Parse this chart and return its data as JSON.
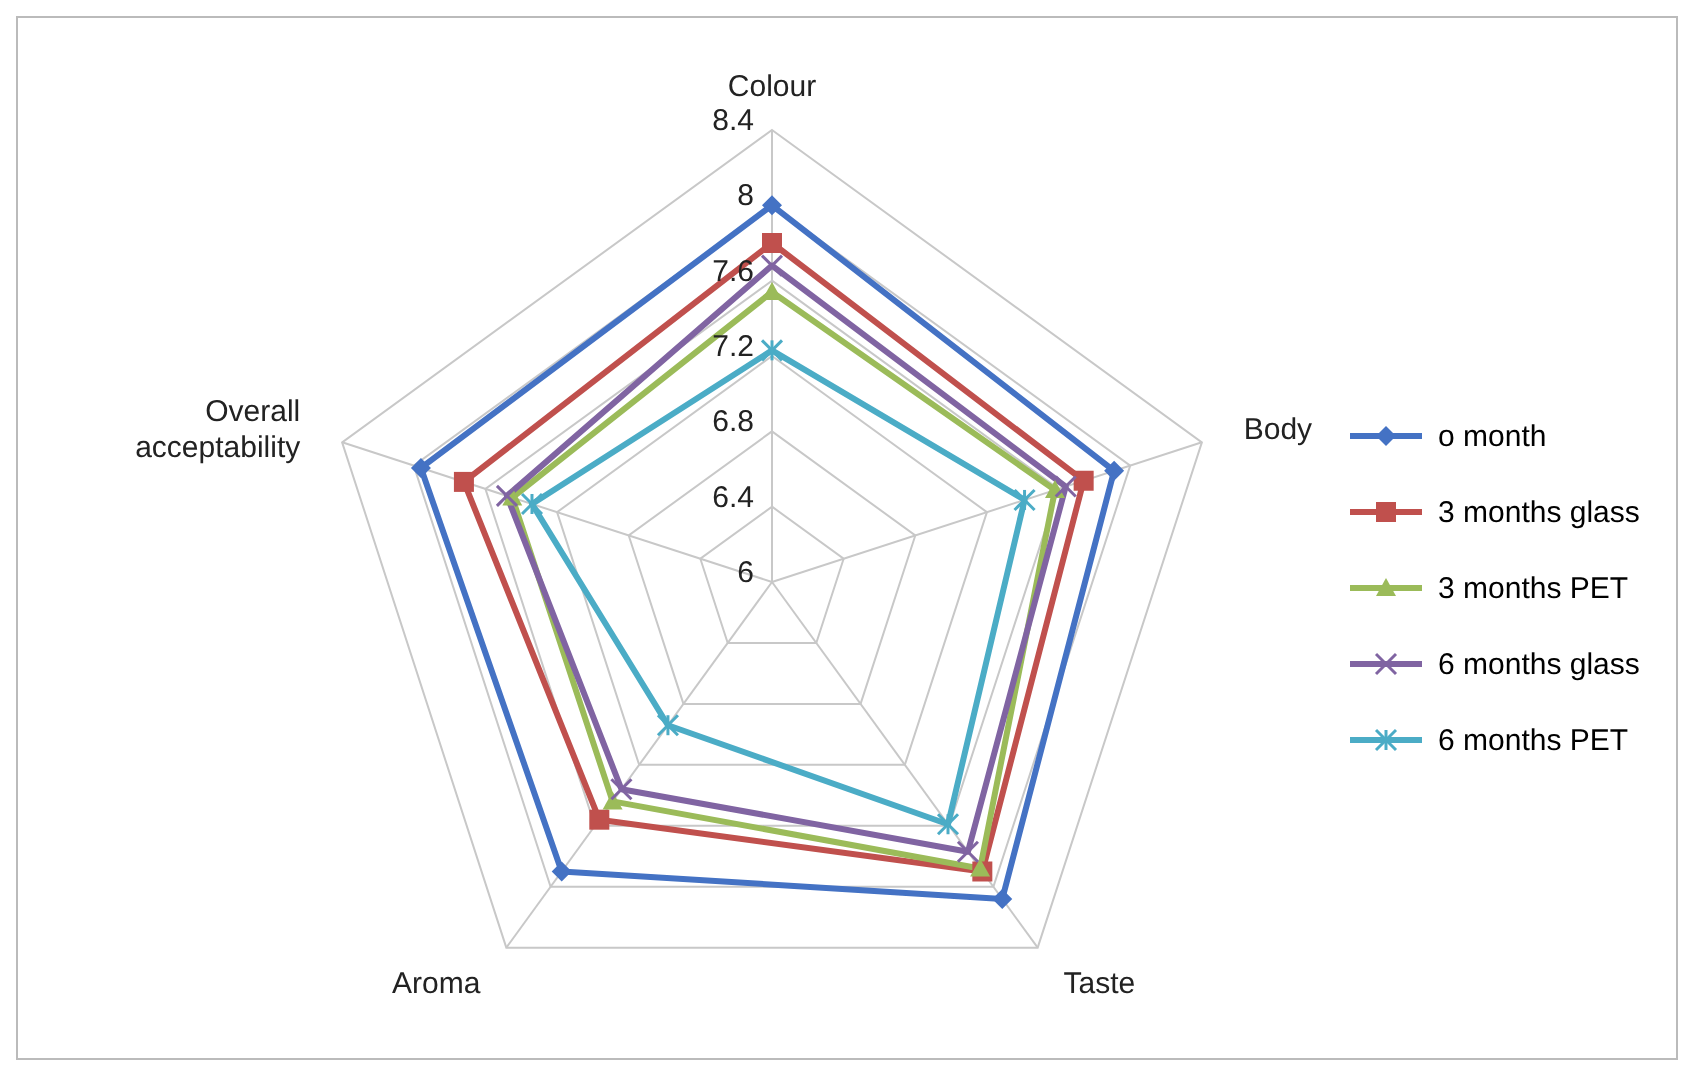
{
  "chart_data": {
    "type": "radar",
    "categories": [
      "Colour",
      "Body",
      "Taste",
      "Aroma",
      "Overall acceptability"
    ],
    "ylim": [
      6,
      8.4
    ],
    "yticks": [
      6,
      6.4,
      6.8,
      7.2,
      7.6,
      8,
      8.4
    ],
    "grid": true,
    "legend": "right",
    "series": [
      {
        "name": "o month",
        "color": "#4472c4",
        "marker": "diamond",
        "values": [
          8.0,
          7.91,
          8.08,
          7.9,
          7.96
        ]
      },
      {
        "name": "3 months glass",
        "color": "#c0504d",
        "marker": "square",
        "values": [
          7.8,
          7.74,
          7.9,
          7.56,
          7.72
        ]
      },
      {
        "name": "3 months PET",
        "color": "#9bbb59",
        "marker": "triangle",
        "values": [
          7.54,
          7.58,
          7.88,
          7.44,
          7.45
        ]
      },
      {
        "name": "6 months glass",
        "color": "#8064a2",
        "marker": "cross",
        "values": [
          7.68,
          7.64,
          7.77,
          7.36,
          7.48
        ]
      },
      {
        "name": "6 months PET",
        "color": "#4bacc6",
        "marker": "star",
        "values": [
          7.23,
          7.41,
          7.59,
          6.94,
          7.34
        ]
      }
    ]
  }
}
